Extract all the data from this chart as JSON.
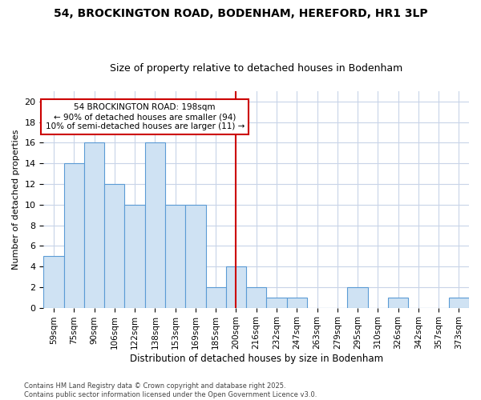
{
  "title_line1": "54, BROCKINGTON ROAD, BODENHAM, HEREFORD, HR1 3LP",
  "title_line2": "Size of property relative to detached houses in Bodenham",
  "xlabel": "Distribution of detached houses by size in Bodenham",
  "ylabel": "Number of detached properties",
  "bar_labels": [
    "59sqm",
    "75sqm",
    "90sqm",
    "106sqm",
    "122sqm",
    "138sqm",
    "153sqm",
    "169sqm",
    "185sqm",
    "200sqm",
    "216sqm",
    "232sqm",
    "247sqm",
    "263sqm",
    "279sqm",
    "295sqm",
    "310sqm",
    "326sqm",
    "342sqm",
    "357sqm",
    "373sqm"
  ],
  "bar_values": [
    5,
    14,
    16,
    12,
    10,
    16,
    10,
    10,
    2,
    4,
    2,
    1,
    1,
    0,
    0,
    2,
    0,
    1,
    0,
    0,
    1
  ],
  "bar_color": "#cfe2f3",
  "bar_edge_color": "#5b9bd5",
  "vline_x": 9,
  "vline_color": "#cc0000",
  "annotation_text": "54 BROCKINGTON ROAD: 198sqm\n← 90% of detached houses are smaller (94)\n10% of semi-detached houses are larger (11) →",
  "annotation_box_color": "#ffffff",
  "annotation_edge_color": "#cc0000",
  "ylim": [
    0,
    21
  ],
  "yticks": [
    0,
    2,
    4,
    6,
    8,
    10,
    12,
    14,
    16,
    18,
    20
  ],
  "grid_color": "#c8d4e8",
  "footer_text": "Contains HM Land Registry data © Crown copyright and database right 2025.\nContains public sector information licensed under the Open Government Licence v3.0.",
  "bg_color": "#ffffff"
}
